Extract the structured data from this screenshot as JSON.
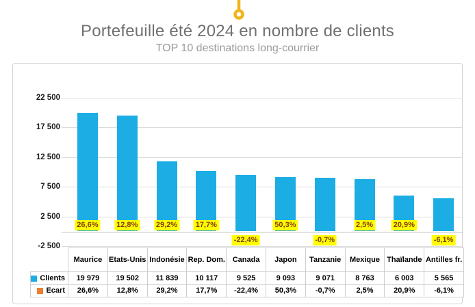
{
  "header": {
    "pin_icon": "map-pin-marker",
    "pin_color": "#f2b41c"
  },
  "chart_data": {
    "type": "bar",
    "title": "Portefeuille été 2024 en nombre de clients",
    "subtitle": "TOP 10 destinations long-courrier",
    "categories": [
      "Maurice",
      "Etats-Unis",
      "Indonésie",
      "Rep. Dom.",
      "Canada",
      "Japon",
      "Tanzanie",
      "Mexique",
      "Thaïlande",
      "Antilles fr."
    ],
    "series": [
      {
        "name": "Clients",
        "color": "#1cade4",
        "values": [
          19979,
          19502,
          11839,
          10117,
          9525,
          9093,
          9071,
          8763,
          6003,
          5565
        ],
        "display_values": [
          "19 979",
          "19 502",
          "11 839",
          "10 117",
          "9 525",
          "9 093",
          "9 071",
          "8 763",
          "6 003",
          "5 565"
        ]
      },
      {
        "name": "Ecart",
        "color": "#ed7d31",
        "values": [
          26.6,
          12.8,
          29.2,
          17.7,
          -22.4,
          50.3,
          -0.7,
          2.5,
          20.9,
          -6.1
        ],
        "display_values": [
          "26,6%",
          "12,8%",
          "29,2%",
          "17,7%",
          "-22,4%",
          "50,3%",
          "-0,7%",
          "2,5%",
          "20,9%",
          "-6,1%"
        ]
      }
    ],
    "y_axis": {
      "min": -2500,
      "max": 25000,
      "major_unit": 5000,
      "ticks": [
        22500,
        17500,
        12500,
        7500,
        2500,
        -2500
      ],
      "tick_labels": [
        "22 500",
        "17 500",
        "12 500",
        "7 500",
        "2 500",
        "-2 500"
      ]
    },
    "data_labels": {
      "labeled_series": "Ecart",
      "background": "#ffff00",
      "text_color": "#843c0c"
    },
    "legend_position": "data-table",
    "grid": true
  }
}
